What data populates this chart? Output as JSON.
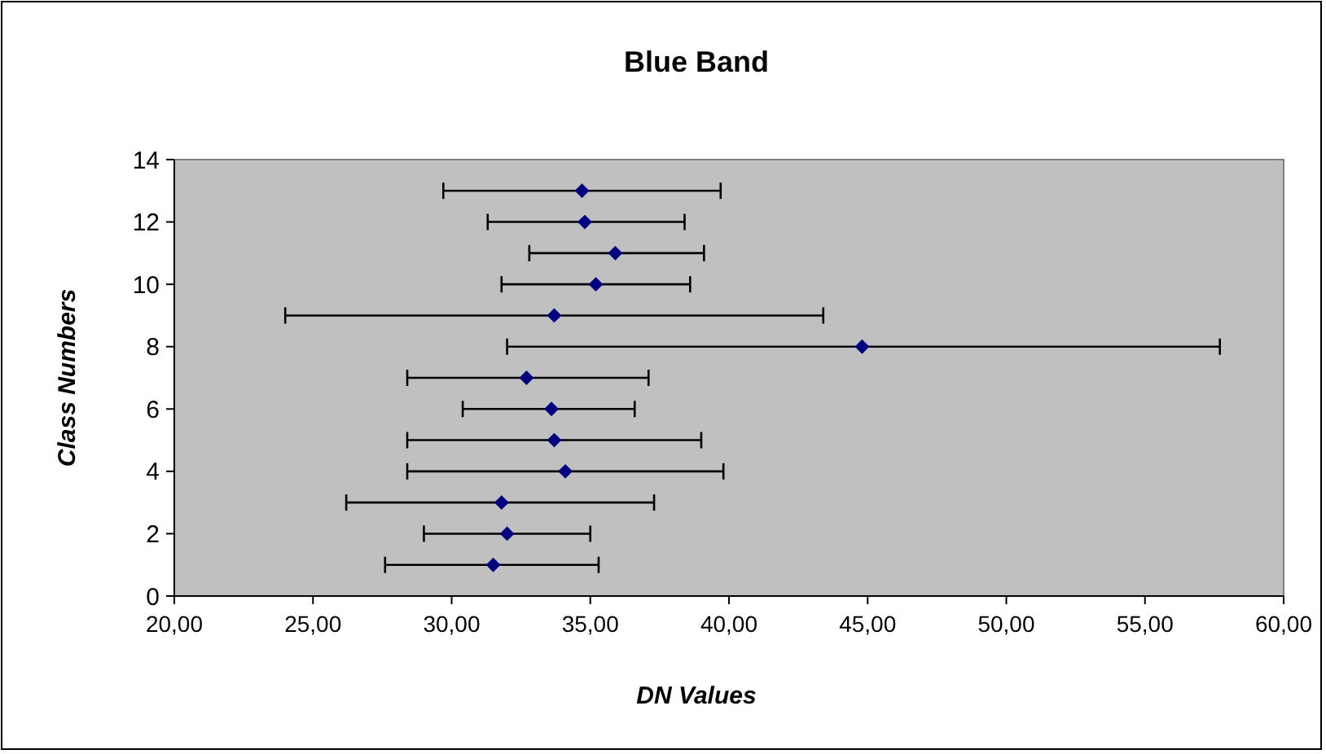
{
  "chart_data": {
    "type": "scatter",
    "title": "Blue Band",
    "xlabel": "DN Values",
    "ylabel": "Class Numbers",
    "x": [
      31.5,
      32.0,
      31.8,
      34.1,
      33.7,
      33.6,
      32.7,
      44.8,
      33.7,
      35.2,
      35.9,
      34.8,
      34.7
    ],
    "values": [
      1,
      2,
      3,
      4,
      5,
      6,
      7,
      8,
      9,
      10,
      11,
      12,
      13
    ],
    "xerrors": [
      [
        27.6,
        35.3
      ],
      [
        29.0,
        35.0
      ],
      [
        26.2,
        37.3
      ],
      [
        28.4,
        39.8
      ],
      [
        28.4,
        39.0
      ],
      [
        30.4,
        36.6
      ],
      [
        28.4,
        37.1
      ],
      [
        32.0,
        57.7
      ],
      [
        24.0,
        43.4
      ],
      [
        31.8,
        38.6
      ],
      [
        32.8,
        39.1
      ],
      [
        31.3,
        38.4
      ],
      [
        29.7,
        39.7
      ]
    ],
    "color": "#000080",
    "marker": "diamond",
    "grid": false,
    "xlim": [
      20,
      60
    ],
    "xticks": [
      {
        "value": 20,
        "label": "20,00"
      },
      {
        "value": 25,
        "label": "25,00"
      },
      {
        "value": 30,
        "label": "30,00"
      },
      {
        "value": 35,
        "label": "35,00"
      },
      {
        "value": 40,
        "label": "40,00"
      },
      {
        "value": 45,
        "label": "45,00"
      },
      {
        "value": 50,
        "label": "50,00"
      },
      {
        "value": 55,
        "label": "55,00"
      },
      {
        "value": 60,
        "label": "60,00"
      }
    ],
    "ylim": [
      0,
      14
    ],
    "yticks": [
      0,
      2,
      4,
      6,
      8,
      10,
      12,
      14
    ]
  }
}
